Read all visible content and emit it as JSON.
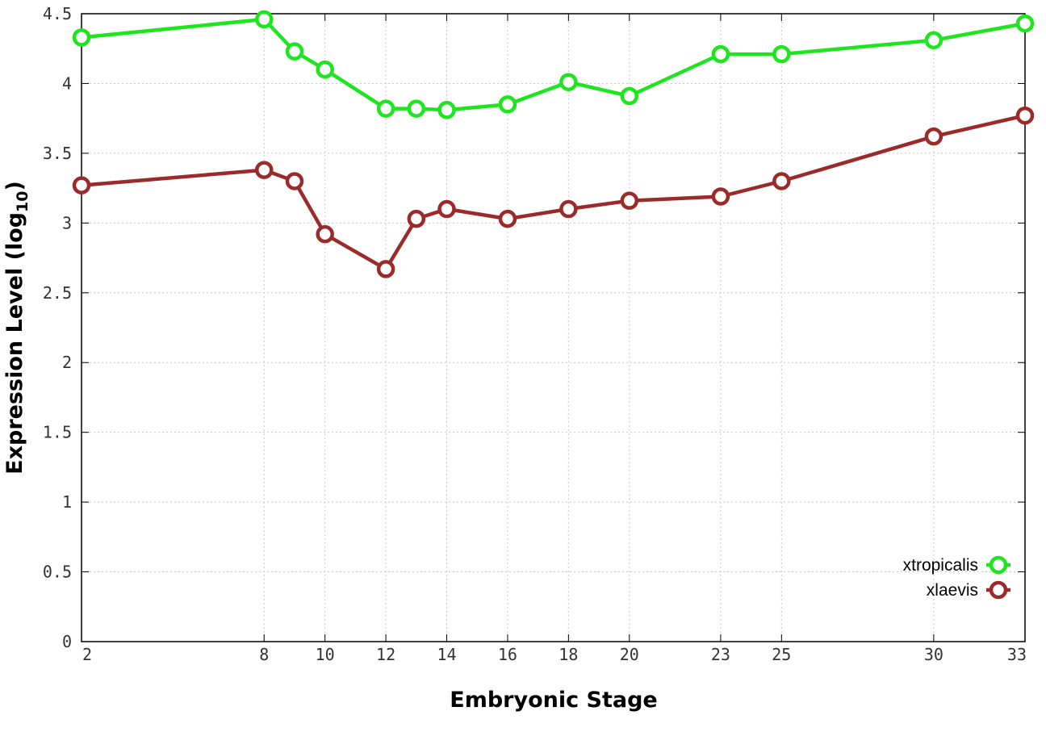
{
  "chart_data": {
    "type": "line",
    "xlabel": "Embryonic Stage",
    "ylabel": "Expression Level (log",
    "ylabel_sub": "10",
    "ylabel_end": ")",
    "x": [
      2,
      8,
      9,
      10,
      12,
      13,
      14,
      16,
      18,
      20,
      23,
      25,
      30,
      33
    ],
    "x_ticks": [
      2,
      8,
      10,
      12,
      14,
      16,
      18,
      20,
      23,
      25,
      30,
      33
    ],
    "xlim": [
      2,
      33
    ],
    "ylim": [
      0,
      4.5
    ],
    "y_ticks": [
      0,
      0.5,
      1,
      1.5,
      2,
      2.5,
      3,
      3.5,
      4,
      4.5
    ],
    "y_tick_labels": [
      "0",
      "0.5",
      "1",
      "1.5",
      "2",
      "2.5",
      "3",
      "3.5",
      "4",
      "4.5"
    ],
    "grid": true,
    "legend_position": "bottom-right",
    "series": [
      {
        "name": "xtropicalis",
        "color": "#1ee61e",
        "values": [
          4.33,
          4.46,
          4.23,
          4.1,
          3.82,
          3.82,
          3.81,
          3.85,
          4.01,
          3.91,
          4.21,
          4.21,
          4.31,
          4.43
        ]
      },
      {
        "name": "xlaevis",
        "color": "#9b2b2b",
        "values": [
          3.27,
          3.38,
          3.3,
          2.92,
          2.67,
          3.03,
          3.1,
          3.03,
          3.1,
          3.16,
          3.19,
          3.3,
          3.62,
          3.77
        ]
      }
    ]
  }
}
